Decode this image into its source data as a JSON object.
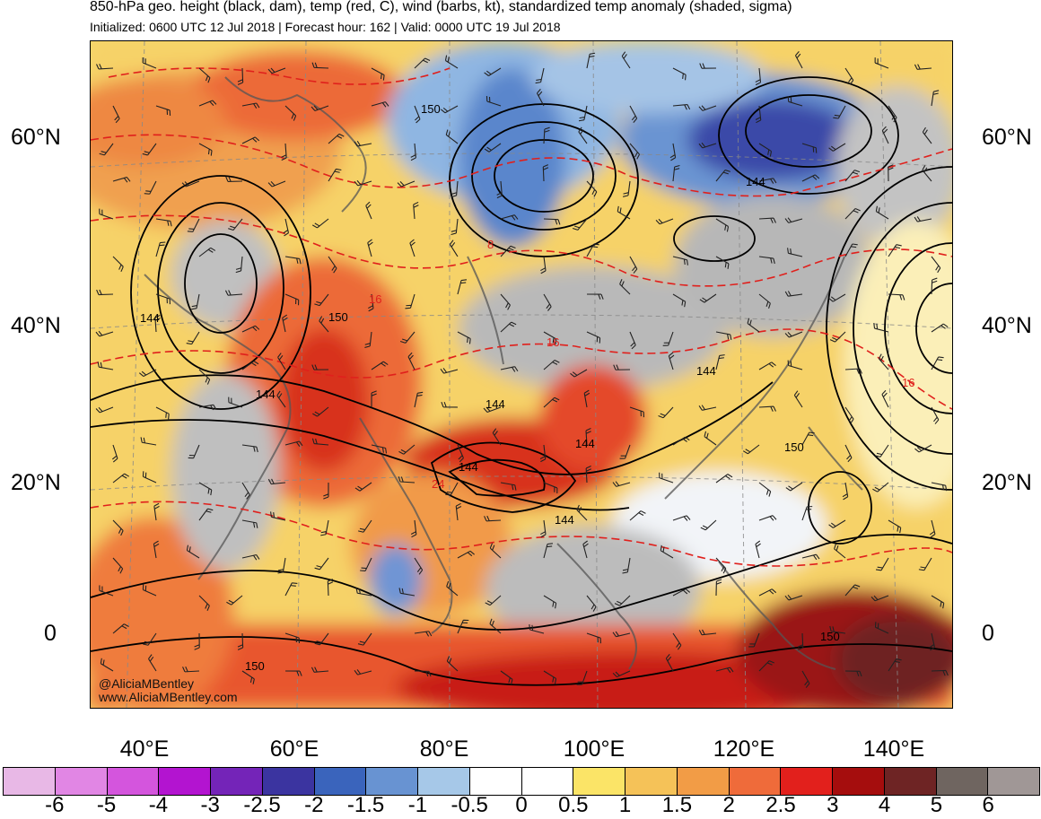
{
  "header": {
    "title": "850-hPa geo. height (black, dam), temp (red, C), wind (barbs, kt), standardized temp anomaly (shaded, sigma)",
    "subtitle": "Initialized: 0600 UTC 12 Jul 2018 | Forecast hour: 162 | Valid: 0000 UTC 19 Jul 2018"
  },
  "map": {
    "lat_labels": [
      "60°N",
      "40°N",
      "20°N",
      "0"
    ],
    "lon_labels": [
      "40°E",
      "60°E",
      "80°E",
      "100°E",
      "120°E",
      "140°E"
    ],
    "height_contour_labels": [
      "150",
      "144",
      "150",
      "144",
      "144",
      "144",
      "144",
      "144",
      "150",
      "150",
      "150",
      "144",
      "144"
    ],
    "temp_contour_labels": [
      "16",
      "8",
      "16",
      "16",
      "24"
    ],
    "credit_handle": "@AliciaMBentley",
    "credit_url": "www.AliciaMBentley.com"
  },
  "colorbar": {
    "colors": [
      "#e8b8e6",
      "#e186e4",
      "#d455dd",
      "#b314d0",
      "#7424b8",
      "#3b34a0",
      "#3a64bc",
      "#6893d2",
      "#a6c8e8",
      "#ffffff",
      "#ffffff",
      "#fbe467",
      "#f5c258",
      "#f29c46",
      "#ef6b3a",
      "#e2201c",
      "#a50d0d",
      "#6e2424",
      "#6f6560",
      "#a09796"
    ],
    "tick_labels": [
      "-6",
      "-5",
      "-4",
      "-3",
      "-2.5",
      "-2",
      "-1.5",
      "-1",
      "-0.5",
      "0",
      "0.5",
      "1",
      "1.5",
      "2",
      "2.5",
      "3",
      "4",
      "5",
      "6"
    ]
  }
}
